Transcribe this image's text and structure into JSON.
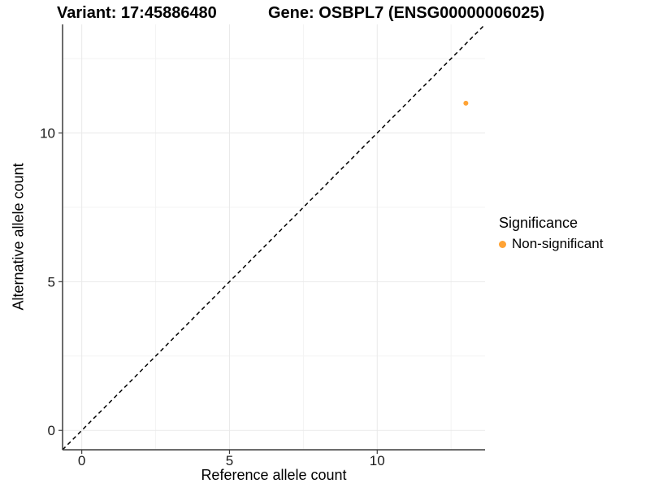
{
  "chart_data": {
    "type": "scatter",
    "title_left": "Variant: 17:45886480",
    "title_right": "Gene: OSBPL7 (ENSG00000006025)",
    "xlabel": "Reference allele count",
    "ylabel": "Alternative allele count",
    "xlim": [
      -0.65,
      13.65
    ],
    "ylim": [
      -0.65,
      13.65
    ],
    "x_ticks": [
      0,
      5,
      10
    ],
    "y_ticks": [
      0,
      5,
      10
    ],
    "x_minor_ticks": [
      2.5,
      7.5,
      12.5
    ],
    "y_minor_ticks": [
      2.5,
      7.5,
      12.5
    ],
    "grid": true,
    "series": [
      {
        "name": "Non-significant",
        "color": "#FFA335",
        "point_radius": 3,
        "points": [
          {
            "x": 13,
            "y": 11
          }
        ]
      }
    ],
    "reference_line": {
      "equation": "y = x",
      "style": "dashed",
      "color": "#000000"
    },
    "legend": {
      "title": "Significance",
      "position": "right",
      "items": [
        {
          "label": "Non-significant",
          "color": "#FFA335"
        }
      ]
    }
  },
  "colors": {
    "background": "#ffffff",
    "grid_major": "#e9e9e9",
    "grid_minor": "#f3f3f3",
    "axis_line": "#3c3c3c",
    "tick_text": "#1a1a1a",
    "reference_line": "#000000"
  }
}
